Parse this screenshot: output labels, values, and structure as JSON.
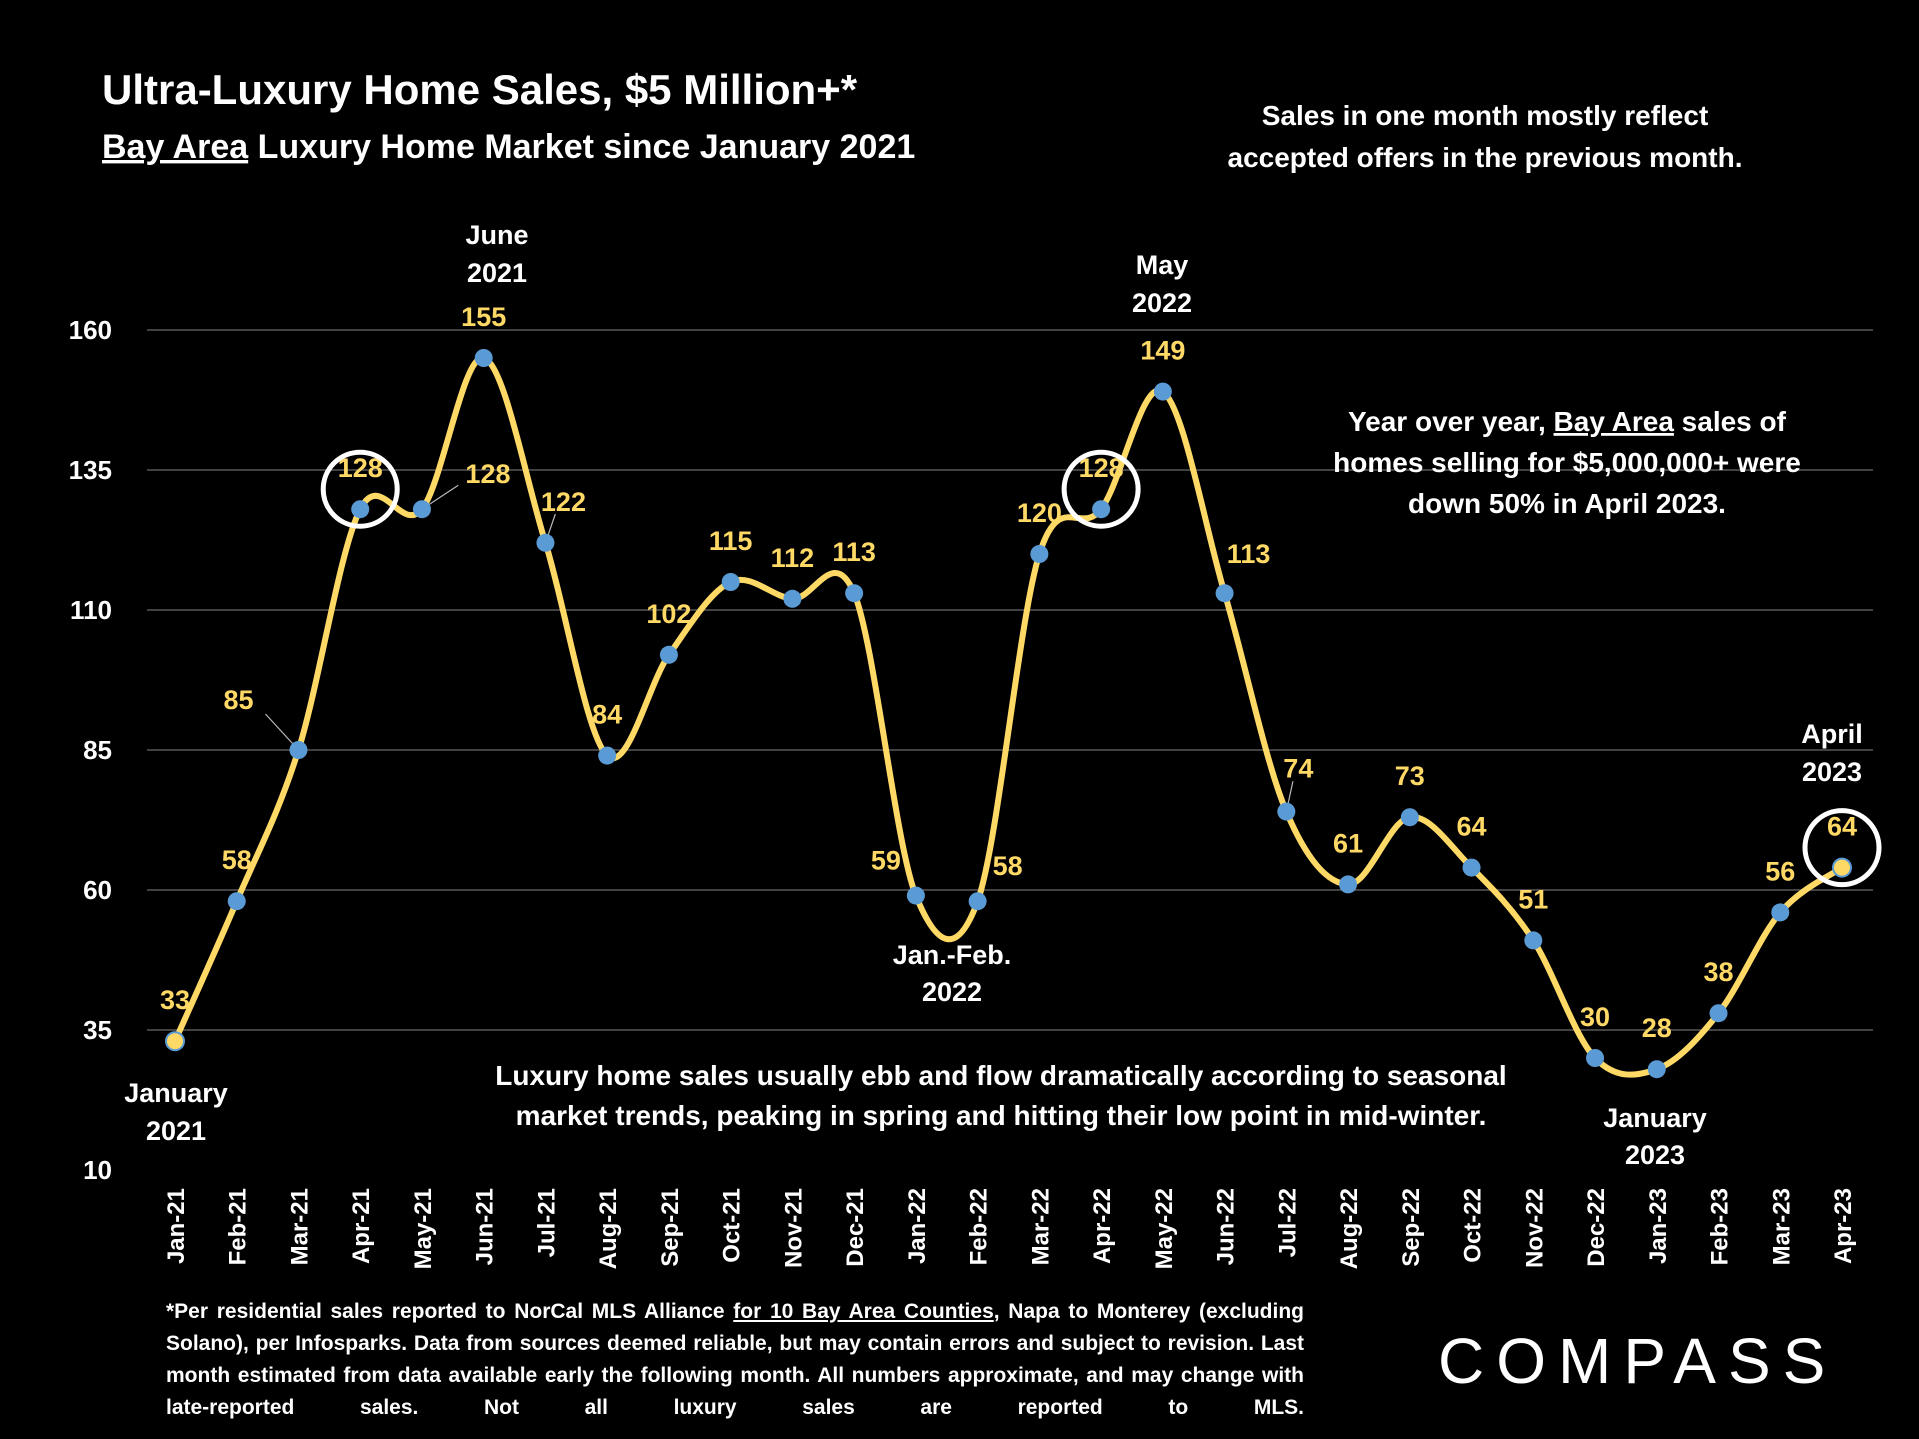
{
  "title": "Ultra-Luxury Home Sales, $5 Million+*",
  "subtitle_underlined": "Bay Area",
  "subtitle_rest": " Luxury Home Market since January 2021",
  "note_top_right": [
    "Sales in one month mostly reflect",
    "accepted offers in the previous month."
  ],
  "note_yoy": {
    "line1_pre": "Year over year, ",
    "line1_u": "Bay Area",
    "line1_post": " sales of",
    "line2": "homes selling for $5,000,000+ were",
    "line3": "down 50% in April 2023."
  },
  "note_bottom": [
    "Luxury home sales usually ebb and flow dramatically according to seasonal",
    "market trends, peaking in spring and hitting their low point in mid-winter."
  ],
  "annotations": {
    "jan2021": [
      "January",
      "2021"
    ],
    "jun2021": [
      "June",
      "2021"
    ],
    "janfeb2022": [
      "Jan.-Feb.",
      "2022"
    ],
    "may2022": [
      "May",
      "2022"
    ],
    "jan2023": [
      "January",
      "2023"
    ],
    "apr2023": [
      "April",
      "2023"
    ]
  },
  "footer": {
    "pre": "*Per residential sales reported to NorCal MLS Alliance ",
    "u": "for 10 Bay Area Counties",
    "post": ", Napa to Monterey (excluding Solano), per Infosparks. Data from sources deemed reliable, but may contain errors and subject to revision. Last month estimated from data available early the following month. All numbers approximate, and may change with late-reported sales. Not all luxury sales are reported to MLS."
  },
  "logo": "COMPASS",
  "colors": {
    "line": "#FFD966",
    "marker": "#5B9BD5",
    "background": "#000000",
    "grid": "#595959",
    "highlight_circle": "#FFFFFF"
  },
  "chart_data": {
    "type": "line",
    "smooth": true,
    "title": "Ultra-Luxury Home Sales, $5 Million+*",
    "categories": [
      "Jan-21",
      "Feb-21",
      "Mar-21",
      "Apr-21",
      "May-21",
      "Jun-21",
      "Jul-21",
      "Aug-21",
      "Sep-21",
      "Oct-21",
      "Nov-21",
      "Dec-21",
      "Jan-22",
      "Feb-22",
      "Mar-22",
      "Apr-22",
      "May-22",
      "Jun-22",
      "Jul-22",
      "Aug-22",
      "Sep-22",
      "Oct-22",
      "Nov-22",
      "Dec-22",
      "Jan-23",
      "Feb-23",
      "Mar-23",
      "Apr-23"
    ],
    "values": [
      33,
      58,
      85,
      128,
      128,
      155,
      122,
      84,
      102,
      115,
      112,
      113,
      59,
      58,
      120,
      128,
      149,
      113,
      74,
      61,
      73,
      64,
      51,
      30,
      28,
      38,
      56,
      64
    ],
    "data_labels": [
      "33",
      "58",
      "85",
      "128",
      "128",
      "155",
      "122",
      "84",
      "102",
      "115",
      "112",
      "113",
      "59",
      "58",
      "120",
      "128",
      "149",
      "113",
      "74",
      "61",
      "73",
      "64",
      "51",
      "30",
      "28",
      "38",
      "56",
      "64"
    ],
    "highlighted": [
      "Apr-21",
      "Apr-22",
      "Apr-23"
    ],
    "ylim": [
      10,
      160
    ],
    "yticks": [
      "10",
      "35",
      "60",
      "85",
      "110",
      "135",
      "160"
    ],
    "grid": true,
    "xlabel": "",
    "ylabel": ""
  }
}
